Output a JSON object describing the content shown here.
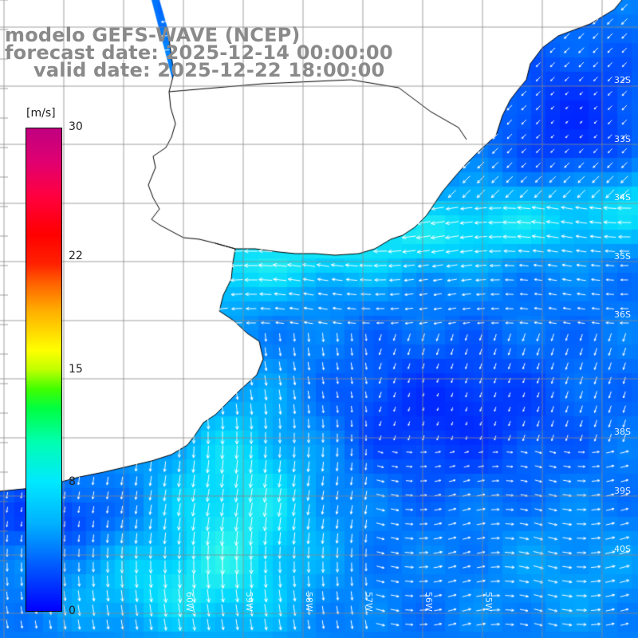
{
  "titles": {
    "line1": "modelo GEFS-WAVE (NCEP)",
    "line2": "forecast date: 2025-12-14 00:00:00",
    "line3": "valid date: 2025-12-22 18:00:00"
  },
  "colorbar": {
    "unit": "[m/s]",
    "ticks": [
      {
        "label": "30",
        "value": 30
      },
      {
        "label": "22",
        "value": 22
      },
      {
        "label": "15",
        "value": 15
      },
      {
        "label": "8",
        "value": 8
      },
      {
        "label": "0",
        "value": 0
      }
    ],
    "min": 0,
    "max": 30
  },
  "grid": {
    "lat_labels": [
      {
        "label": "32S",
        "lat": -32
      },
      {
        "label": "33S",
        "lat": -33
      },
      {
        "label": "34S",
        "lat": -34
      },
      {
        "label": "35S",
        "lat": -35
      },
      {
        "label": "36S",
        "lat": -36
      },
      {
        "label": "38S",
        "lat": -38
      },
      {
        "label": "39S",
        "lat": -39
      },
      {
        "label": "40S",
        "lat": -40
      }
    ],
    "lon_labels": [
      {
        "label": "60W",
        "lon": -60
      },
      {
        "label": "59W",
        "lon": -59
      },
      {
        "label": "58W",
        "lon": -58
      },
      {
        "label": "57W",
        "lon": -57
      },
      {
        "label": "56W",
        "lon": -56
      },
      {
        "label": "55W",
        "lon": -55
      }
    ]
  },
  "colors": {
    "land": "#ffffff",
    "coastline": "#000000",
    "gridline": "#888888",
    "arrow": "#ffffff",
    "title": "#8a8a8a"
  }
}
